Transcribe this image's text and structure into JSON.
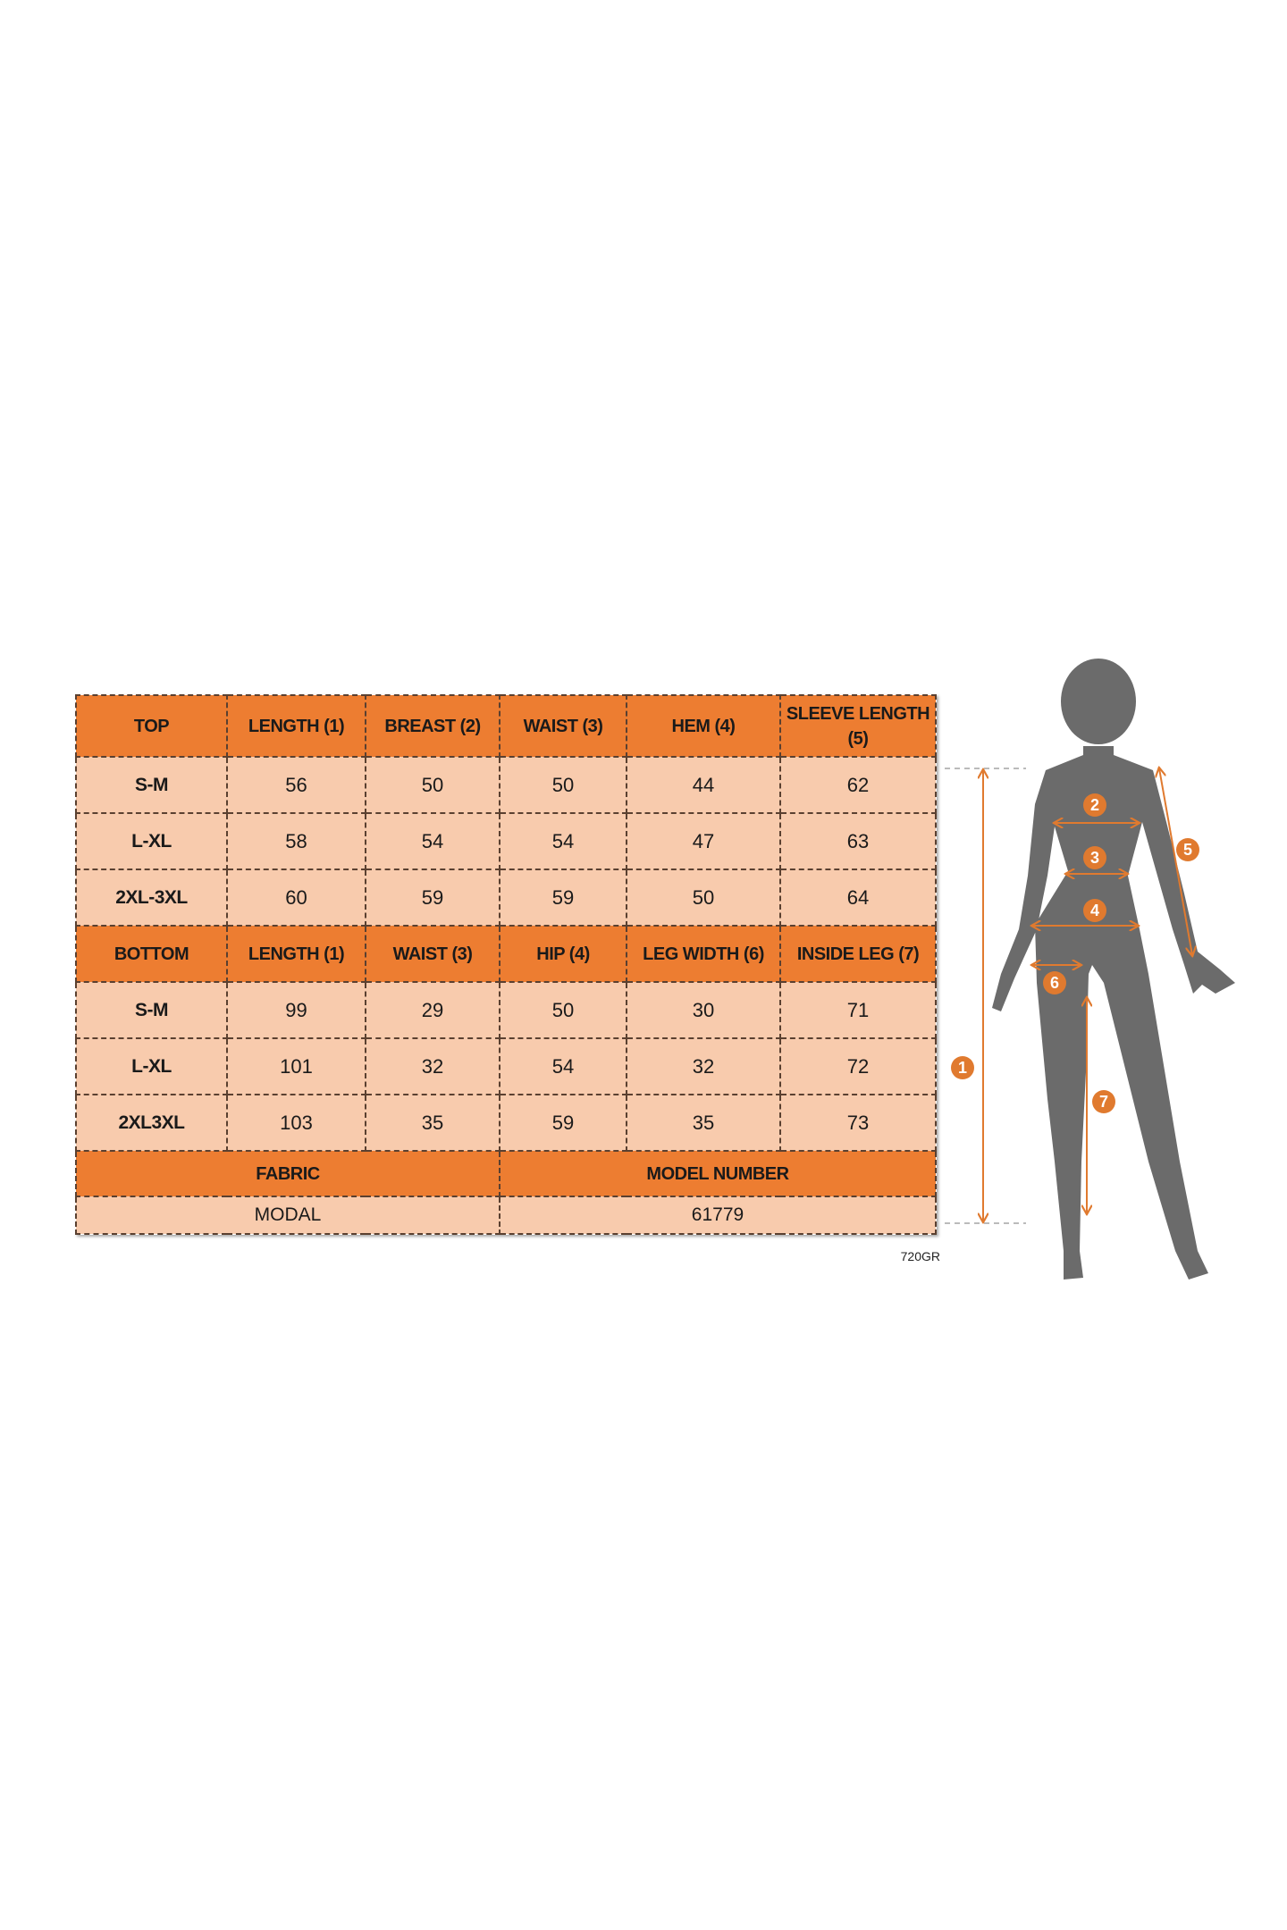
{
  "colors": {
    "header": "#ED7D31",
    "cell": "#F8CBAD",
    "silhouette": "#6b6b6b",
    "marker": "#E07A2F"
  },
  "top": {
    "headers": [
      "TOP",
      "LENGTH (1)",
      "BREAST (2)",
      "WAIST (3)",
      "HEM (4)",
      "SLEEVE LENGTH (5)"
    ],
    "rows": [
      [
        "S-M",
        "56",
        "50",
        "50",
        "44",
        "62"
      ],
      [
        "L-XL",
        "58",
        "54",
        "54",
        "47",
        "63"
      ],
      [
        "2XL-3XL",
        "60",
        "59",
        "59",
        "50",
        "64"
      ]
    ]
  },
  "bottom": {
    "headers": [
      "BOTTOM",
      "LENGTH (1)",
      "WAIST (3)",
      "HIP (4)",
      "LEG WIDTH (6)",
      "INSIDE LEG (7)"
    ],
    "rows": [
      [
        "S-M",
        "99",
        "29",
        "50",
        "30",
        "71"
      ],
      [
        "L-XL",
        "101",
        "32",
        "54",
        "32",
        "72"
      ],
      [
        "2XL3XL",
        "103",
        "35",
        "59",
        "35",
        "73"
      ]
    ]
  },
  "info": {
    "fabric_label": "FABRIC",
    "model_label": "MODEL NUMBER",
    "fabric": "MODAL",
    "model": "61779"
  },
  "code": "720GR",
  "figure": {
    "markers": [
      "1",
      "2",
      "3",
      "4",
      "5",
      "6",
      "7"
    ]
  }
}
